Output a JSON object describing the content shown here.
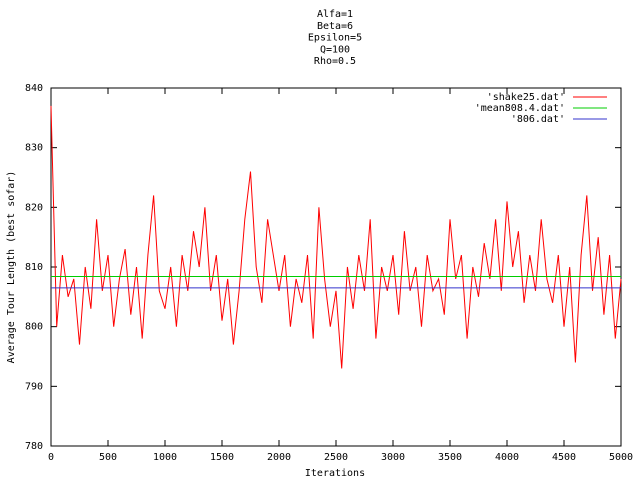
{
  "chart_data": {
    "type": "line",
    "title_lines": [
      "Alfa=1",
      "Beta=6",
      "Epsilon=5",
      "Q=100",
      "Rho=0.5"
    ],
    "xlabel": "Iterations",
    "ylabel": "Average Tour Length (best sofar)",
    "xlim": [
      0,
      5000
    ],
    "ylim": [
      780,
      840
    ],
    "xticks": [
      0,
      500,
      1000,
      1500,
      2000,
      2500,
      3000,
      3500,
      4000,
      4500,
      5000
    ],
    "yticks": [
      780,
      790,
      800,
      810,
      820,
      830,
      840
    ],
    "legend": "top-right",
    "series": [
      {
        "name": "'shake25.dat'",
        "color": "#ff0000",
        "x": [
          0,
          50,
          100,
          150,
          200,
          250,
          300,
          350,
          400,
          450,
          500,
          550,
          600,
          650,
          700,
          750,
          800,
          850,
          900,
          950,
          1000,
          1050,
          1100,
          1150,
          1200,
          1250,
          1300,
          1350,
          1400,
          1450,
          1500,
          1550,
          1600,
          1650,
          1700,
          1750,
          1800,
          1850,
          1900,
          1950,
          2000,
          2050,
          2100,
          2150,
          2200,
          2250,
          2300,
          2350,
          2400,
          2450,
          2500,
          2550,
          2600,
          2650,
          2700,
          2750,
          2800,
          2850,
          2900,
          2950,
          3000,
          3050,
          3100,
          3150,
          3200,
          3250,
          3300,
          3350,
          3400,
          3450,
          3500,
          3550,
          3600,
          3650,
          3700,
          3750,
          3800,
          3850,
          3900,
          3950,
          4000,
          4050,
          4100,
          4150,
          4200,
          4250,
          4300,
          4350,
          4400,
          4450,
          4500,
          4550,
          4600,
          4650,
          4700,
          4750,
          4800,
          4850,
          4900,
          4950,
          5000
        ],
        "values": [
          837,
          800,
          812,
          805,
          808,
          797,
          810,
          803,
          818,
          806,
          812,
          800,
          808,
          813,
          802,
          810,
          798,
          812,
          822,
          806,
          803,
          810,
          800,
          812,
          806,
          816,
          810,
          820,
          806,
          812,
          801,
          808,
          797,
          806,
          818,
          826,
          810,
          804,
          818,
          812,
          806,
          812,
          800,
          808,
          804,
          812,
          798,
          820,
          808,
          800,
          806,
          793,
          810,
          803,
          812,
          806,
          818,
          798,
          810,
          806,
          812,
          802,
          816,
          806,
          810,
          800,
          812,
          806,
          808,
          802,
          818,
          808,
          812,
          798,
          810,
          805,
          814,
          808,
          818,
          806,
          821,
          810,
          816,
          804,
          812,
          806,
          818,
          808,
          804,
          812,
          800,
          810,
          794,
          812,
          822,
          806,
          815,
          802,
          812,
          798,
          808
        ]
      },
      {
        "name": "'mean808.4.dat'",
        "color": "#00cc00",
        "x": [
          0,
          5000
        ],
        "values": [
          808.4,
          808.4
        ]
      },
      {
        "name": "'806.dat'",
        "color": "#3333cc",
        "x": [
          0,
          5000
        ],
        "values": [
          806.5,
          806.5
        ]
      }
    ]
  }
}
